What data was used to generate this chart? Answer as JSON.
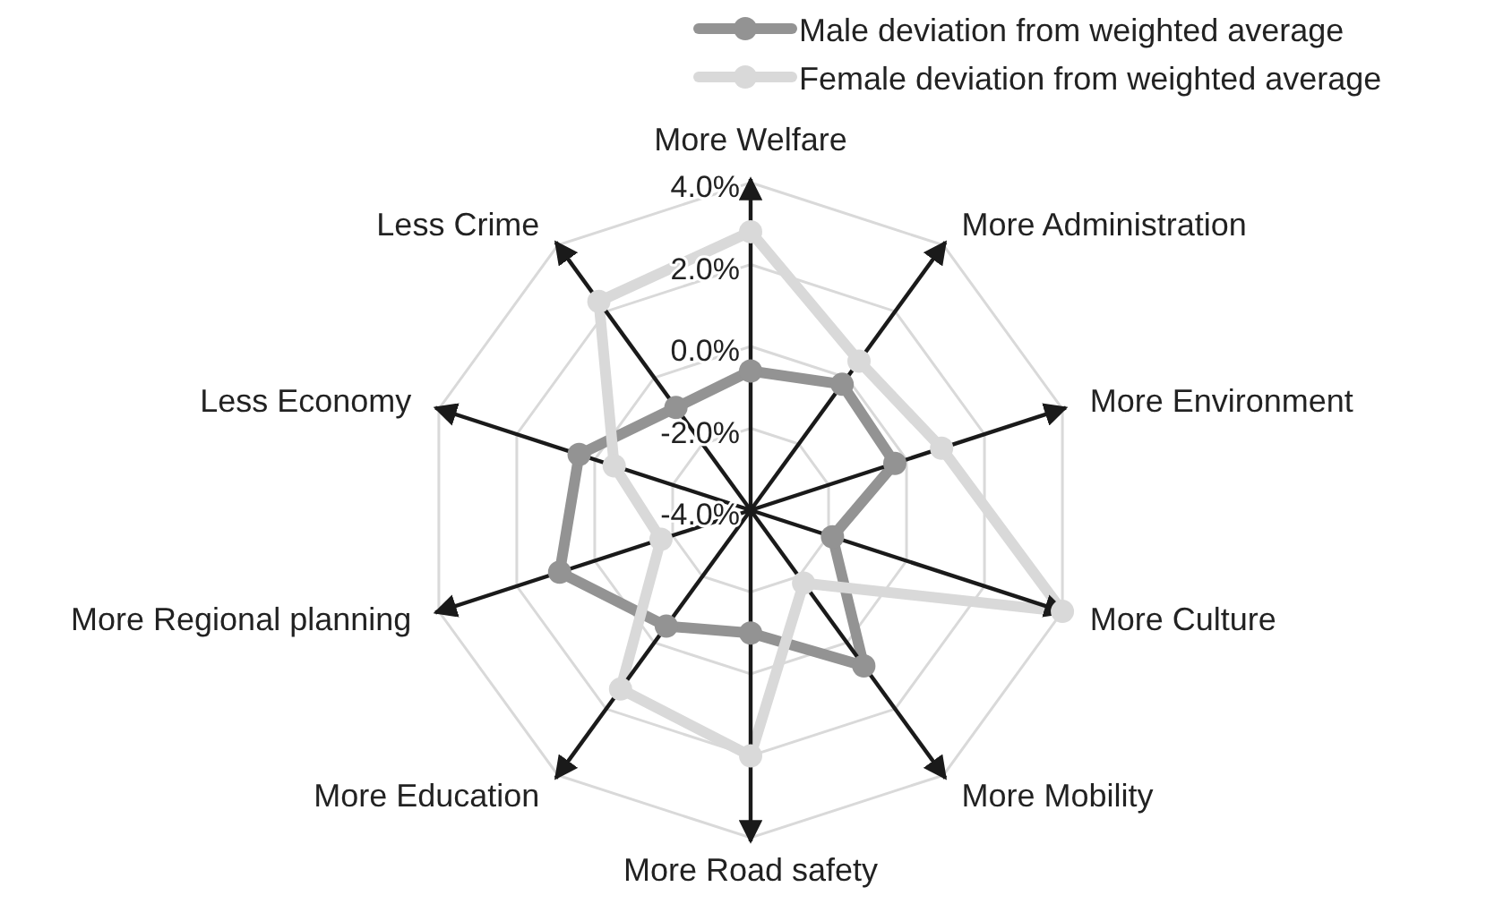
{
  "chart_data": {
    "type": "radar",
    "categories": [
      "More Welfare",
      "More Administration",
      "More Environment",
      "More Culture",
      "More Mobility",
      "More Road safety",
      "More Education",
      "More Regional planning",
      "Less Economy",
      "Less Crime"
    ],
    "series": [
      {
        "name": "Male deviation from weighted average",
        "color": "#939393",
        "values": [
          -0.6,
          -0.2,
          -0.3,
          -1.9,
          0.7,
          -1.0,
          -0.5,
          0.9,
          0.4,
          -0.9
        ]
      },
      {
        "name": "Female deviation from weighted average",
        "color": "#d9d9d9",
        "values": [
          2.8,
          0.5,
          0.9,
          4.0,
          -1.8,
          2.0,
          1.4,
          -1.7,
          -0.5,
          2.3
        ]
      }
    ],
    "ylim": [
      -4,
      4
    ],
    "yticks": [
      {
        "value": -4,
        "label": "-4.0%"
      },
      {
        "value": -2,
        "label": "-2.0%"
      },
      {
        "value": 0,
        "label": "0.0%"
      },
      {
        "value": 2,
        "label": "2.0%"
      },
      {
        "value": 4,
        "label": "4.0%"
      }
    ],
    "grid": true,
    "legend": "top right",
    "marker": "circle",
    "line_style": "solid"
  }
}
